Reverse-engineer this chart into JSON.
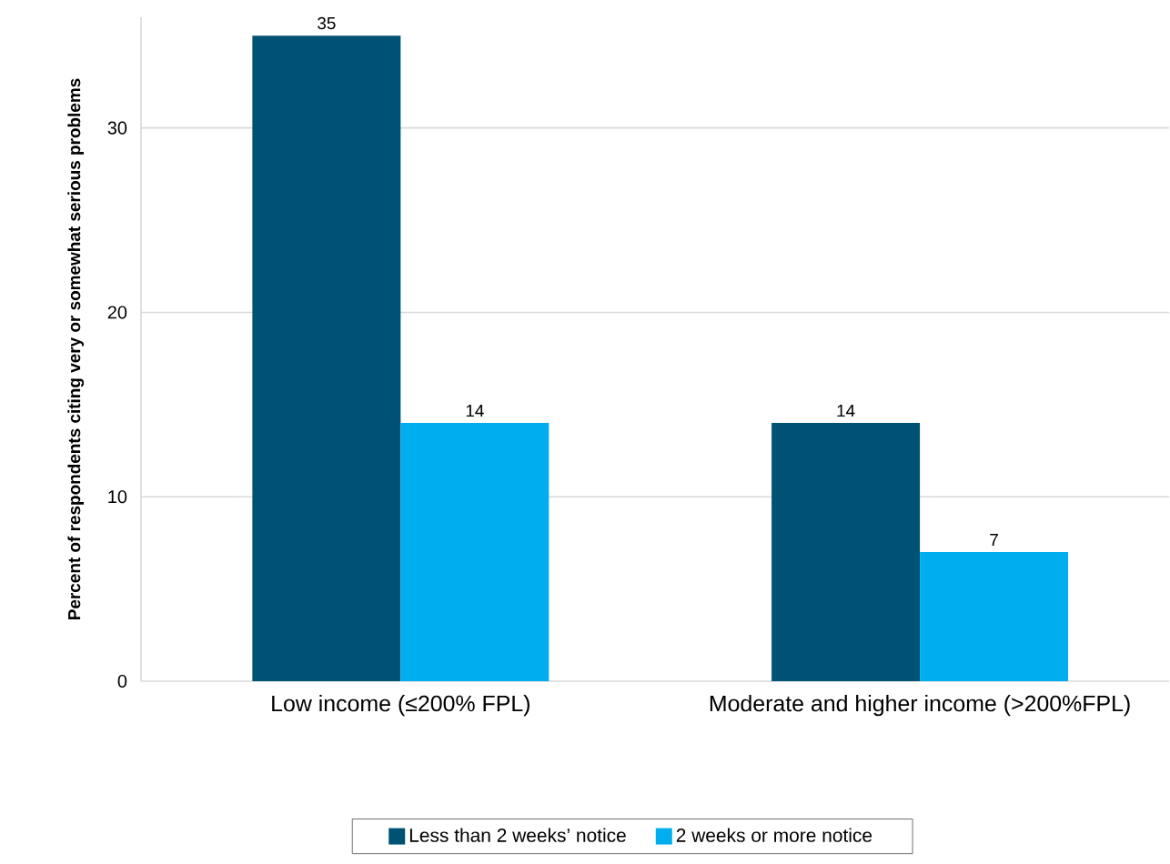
{
  "chart_data": {
    "type": "bar",
    "ylabel": "Percent of respondents citing very or somewhat serious problems",
    "categories": [
      "Low income (≤200% FPL)",
      "Moderate and higher income (>200%FPL)"
    ],
    "series": [
      {
        "name": "Less than 2 weeks’ notice",
        "color": "#005275",
        "values": [
          35,
          14
        ]
      },
      {
        "name": "2 weeks or more notice",
        "color": "#00aeef",
        "values": [
          14,
          7
        ]
      }
    ],
    "ylim": [
      0,
      36
    ],
    "yticks": [
      0,
      10,
      20,
      30
    ],
    "grid": "y",
    "legend": "bottom",
    "data_labels": true
  }
}
